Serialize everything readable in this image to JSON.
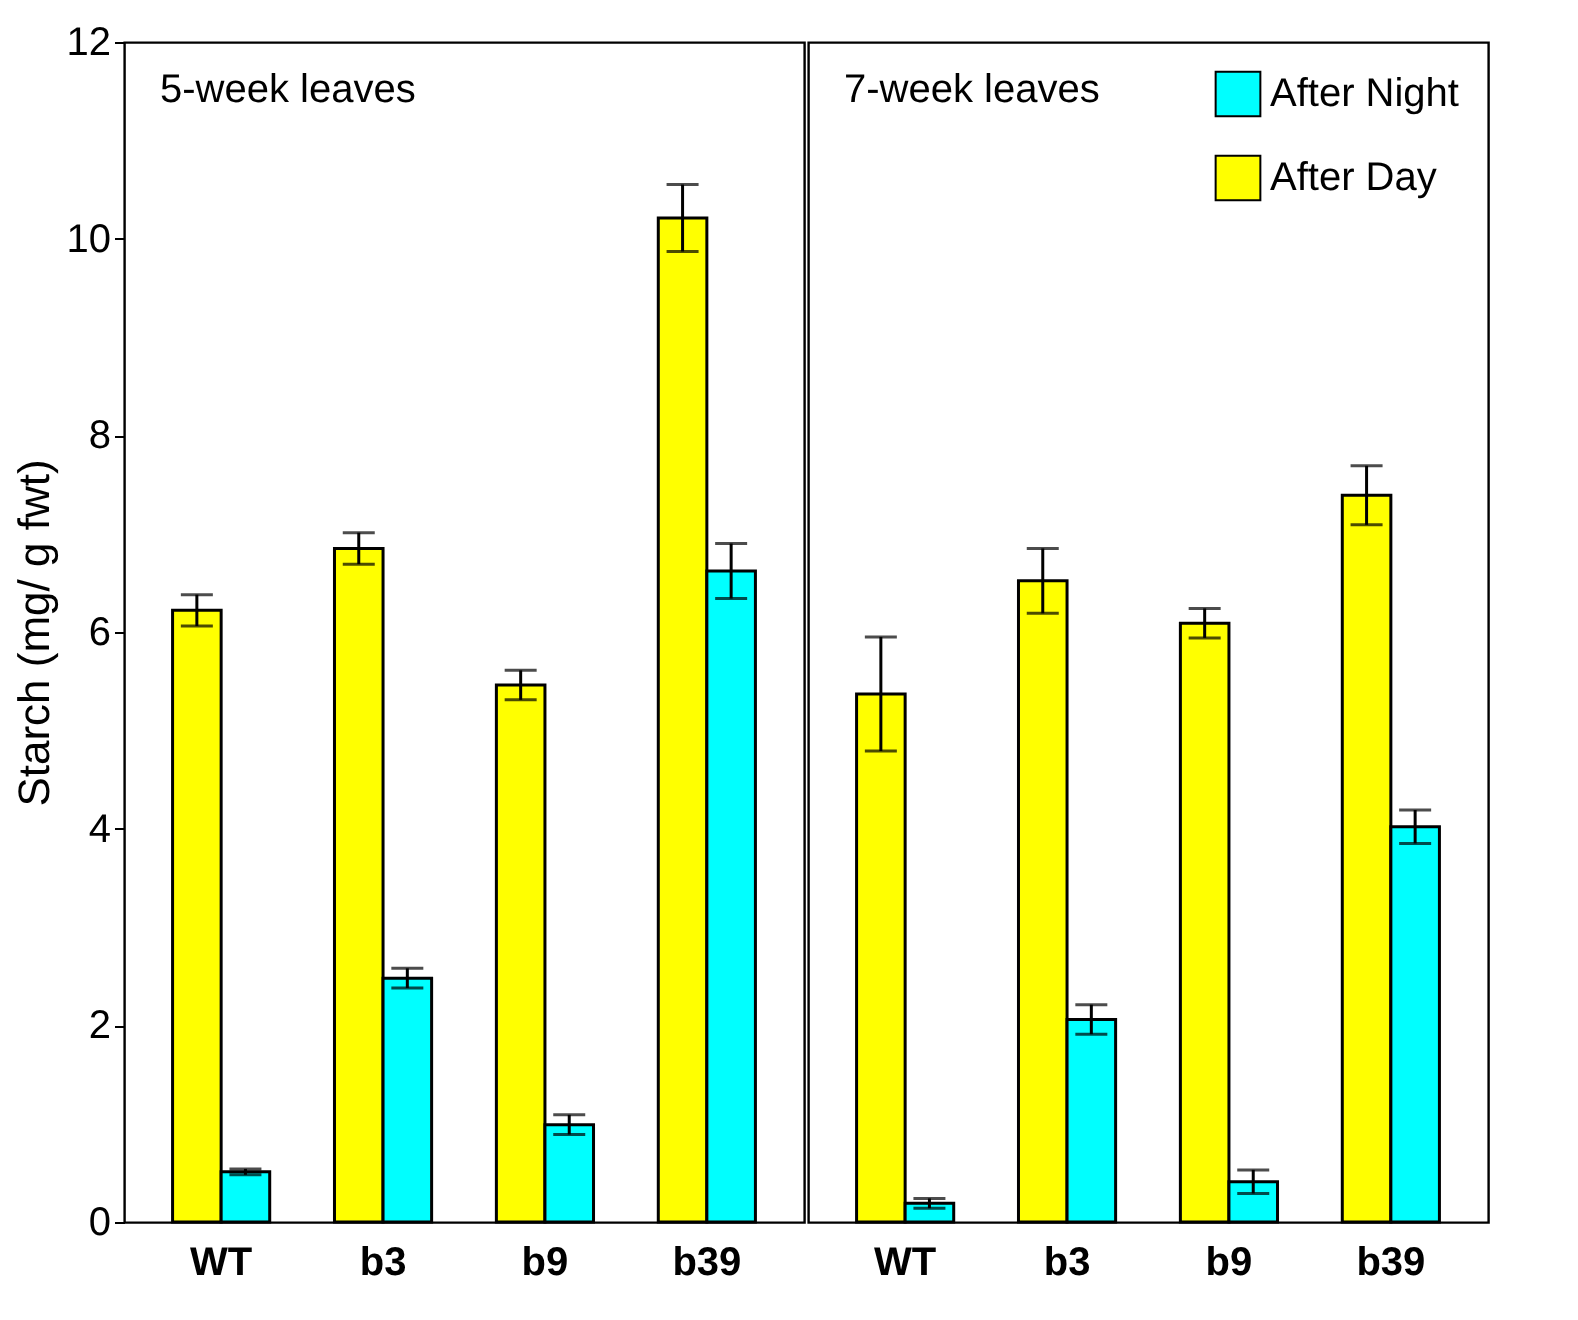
{
  "chart_data": [
    {
      "type": "bar",
      "title": "5-week leaves",
      "ylabel": "Starch (mg/ g fwt)",
      "categories": [
        "WT",
        "b3",
        "b9",
        "b39"
      ],
      "ylim": [
        0,
        12
      ],
      "yticks": [
        0,
        2,
        4,
        6,
        8,
        10,
        12
      ],
      "grid": false,
      "legend": false,
      "series": [
        {
          "color": "#ffff00",
          "values": [
            6.22,
            6.85,
            5.46,
            10.21
          ],
          "errors": [
            0.16,
            0.16,
            0.15,
            0.34
          ]
        },
        {
          "color": "#00ffff",
          "values": [
            0.51,
            2.48,
            0.99,
            6.62
          ],
          "errors": [
            0.03,
            0.1,
            0.1,
            0.28
          ]
        }
      ]
    },
    {
      "type": "bar",
      "title": "7-week leaves",
      "categories": [
        "WT",
        "b3",
        "b9",
        "b39"
      ],
      "ylim": [
        0,
        12
      ],
      "yticks": [
        0,
        2,
        4,
        6,
        8,
        10,
        12
      ],
      "grid": false,
      "legend": "top right",
      "tick_labels": "x",
      "series": [
        {
          "name": "After Day",
          "color": "#ffff00",
          "values": [
            5.37,
            6.52,
            6.09,
            7.39
          ],
          "errors": [
            0.58,
            0.33,
            0.15,
            0.3
          ]
        },
        {
          "name": "After Night",
          "color": "#00ffff",
          "values": [
            0.19,
            2.06,
            0.41,
            4.02
          ],
          "errors": [
            0.05,
            0.15,
            0.12,
            0.17
          ]
        }
      ]
    }
  ]
}
